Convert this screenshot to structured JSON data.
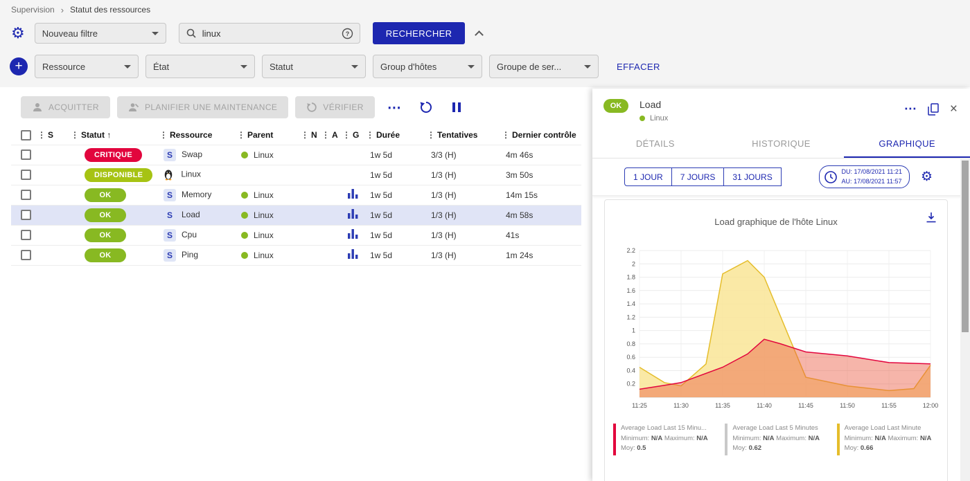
{
  "breadcrumb": {
    "items": [
      "Supervision",
      "Statut des ressources"
    ],
    "separator": "›"
  },
  "icons": {
    "drag": "⋮",
    "sort_asc": "↑",
    "gear": "⚙",
    "plus": "+",
    "more": "⋯",
    "close": "×",
    "help": "?",
    "service_letter": "S"
  },
  "filters": {
    "filter_select": "Nouveau filtre",
    "search_value": "linux",
    "search_button": "RECHERCHER",
    "criteria": [
      "Ressource",
      "État",
      "Statut",
      "Group d'hôtes",
      "Groupe de ser..."
    ],
    "clear_button": "EFFACER"
  },
  "toolbar": {
    "acknowledge": "ACQUITTER",
    "maintenance": "PLANIFIER UNE MAINTENANCE",
    "check": "VÉRIFIER"
  },
  "table": {
    "columns": [
      "S",
      "Statut",
      "Ressource",
      "Parent",
      "N",
      "A",
      "G",
      "Durée",
      "Tentatives",
      "Dernier contrôle"
    ],
    "rows": [
      {
        "status": "CRITIQUE",
        "status_color": "#e2053d",
        "resource": "Swap",
        "parent": "Linux",
        "graph": false,
        "duration": "1w 5d",
        "tries": "3/3 (H)",
        "last_check": "4m 46s",
        "selected": false
      },
      {
        "status": "DISPONIBLE",
        "status_color": "#a6c313",
        "resource": "Linux",
        "parent": "",
        "graph": false,
        "duration": "1w 5d",
        "tries": "1/3 (H)",
        "last_check": "3m 50s",
        "selected": false
      },
      {
        "status": "OK",
        "status_color": "#88b922",
        "resource": "Memory",
        "parent": "Linux",
        "graph": true,
        "duration": "1w 5d",
        "tries": "1/3 (H)",
        "last_check": "14m 15s",
        "selected": false
      },
      {
        "status": "OK",
        "status_color": "#88b922",
        "resource": "Load",
        "parent": "Linux",
        "graph": true,
        "duration": "1w 5d",
        "tries": "1/3 (H)",
        "last_check": "4m 58s",
        "selected": true
      },
      {
        "status": "OK",
        "status_color": "#88b922",
        "resource": "Cpu",
        "parent": "Linux",
        "graph": true,
        "duration": "1w 5d",
        "tries": "1/3 (H)",
        "last_check": "41s",
        "selected": false
      },
      {
        "status": "OK",
        "status_color": "#88b922",
        "resource": "Ping",
        "parent": "Linux",
        "graph": true,
        "duration": "1w 5d",
        "tries": "1/3 (H)",
        "last_check": "1m 24s",
        "selected": false
      }
    ]
  },
  "detail_panel": {
    "status": "OK",
    "status_color": "#88b922",
    "title": "Load",
    "host": "Linux",
    "tabs": [
      "DÉTAILS",
      "HISTORIQUE",
      "GRAPHIQUE"
    ],
    "active_tab": "GRAPHIQUE",
    "ranges": [
      "1 JOUR",
      "7 JOURS",
      "31 JOURS"
    ],
    "period": {
      "from_label": "DU:",
      "from": "17/08/2021 11:21",
      "to_label": "AU:",
      "to": "17/08/2021 11:57"
    }
  },
  "chart_data": {
    "type": "area",
    "title": "Load graphique de l'hôte Linux",
    "x_categories": [
      "11:25",
      "11:30",
      "11:35",
      "11:40",
      "11:45",
      "11:50",
      "11:55",
      "12:00"
    ],
    "x_minutes_max": 35,
    "ylim": [
      0,
      2.2
    ],
    "y_ticks": [
      "0.2",
      "0.4",
      "0.6",
      "0.8",
      "1",
      "1.2",
      "1.4",
      "1.6",
      "1.8",
      "2",
      "2.2"
    ],
    "legend_labels": {
      "min": "Minimum:",
      "max": "Maximum:",
      "avg": "Moy:"
    },
    "draw_order": [
      2,
      0
    ],
    "series": [
      {
        "name": "Average Load Last 15 Minu...",
        "color": "#e2053d",
        "fill": "rgba(234,92,66,0.45)",
        "min": "N/A",
        "max": "N/A",
        "avg": "0.5",
        "points": [
          [
            0,
            0.12
          ],
          [
            3,
            0.18
          ],
          [
            5,
            0.22
          ],
          [
            10,
            0.45
          ],
          [
            13,
            0.65
          ],
          [
            15,
            0.87
          ],
          [
            17,
            0.8
          ],
          [
            20,
            0.68
          ],
          [
            25,
            0.62
          ],
          [
            30,
            0.52
          ],
          [
            35,
            0.5
          ]
        ]
      },
      {
        "name": "Average Load Last 5 Minutes",
        "color": "#c9c9c9",
        "fill": "rgba(200,200,200,0.3)",
        "min": "N/A",
        "max": "N/A",
        "avg": "0.62",
        "points": []
      },
      {
        "name": "Average Load Last Minute",
        "color": "#e5bd2b",
        "fill": "rgba(249,229,150,0.85)",
        "min": "N/A",
        "max": "N/A",
        "avg": "0.66",
        "points": [
          [
            0,
            0.45
          ],
          [
            3,
            0.22
          ],
          [
            5,
            0.17
          ],
          [
            8,
            0.5
          ],
          [
            10,
            1.85
          ],
          [
            13,
            2.05
          ],
          [
            15,
            1.8
          ],
          [
            18,
            0.9
          ],
          [
            20,
            0.3
          ],
          [
            25,
            0.17
          ],
          [
            30,
            0.1
          ],
          [
            33,
            0.13
          ],
          [
            35,
            0.48
          ]
        ]
      }
    ]
  }
}
